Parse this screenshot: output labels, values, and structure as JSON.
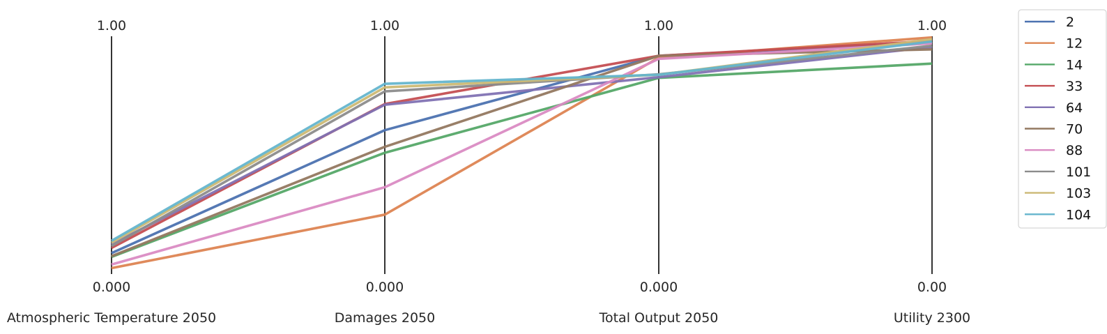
{
  "chart_data": {
    "type": "parallel_coordinates",
    "axes": [
      {
        "name": "Atmospheric Temperature 2050",
        "top_label": "1.00",
        "bottom_label": "0.000"
      },
      {
        "name": "Damages 2050",
        "top_label": "1.00",
        "bottom_label": "0.000"
      },
      {
        "name": "Total Output 2050",
        "top_label": "1.00",
        "bottom_label": "0.000"
      },
      {
        "name": "Utility 2300",
        "top_label": "1.00",
        "bottom_label": "0.00"
      }
    ],
    "ylim": [
      0,
      1
    ],
    "legend_position": "right",
    "series": [
      {
        "name": "2",
        "color": "#4c72b0",
        "values": [
          0.088,
          0.605,
          0.918,
          0.975
        ]
      },
      {
        "name": "12",
        "color": "#dd8452",
        "values": [
          0.025,
          0.25,
          0.91,
          0.995
        ]
      },
      {
        "name": "14",
        "color": "#55a868",
        "values": [
          0.072,
          0.51,
          0.825,
          0.885
        ]
      },
      {
        "name": "33",
        "color": "#c44e52",
        "values": [
          0.11,
          0.715,
          0.918,
          0.98
        ]
      },
      {
        "name": "64",
        "color": "#8172b3",
        "values": [
          0.125,
          0.712,
          0.828,
          0.955
        ]
      },
      {
        "name": "70",
        "color": "#937860",
        "values": [
          0.075,
          0.535,
          0.918,
          0.945
        ]
      },
      {
        "name": "88",
        "color": "#da8bc3",
        "values": [
          0.04,
          0.365,
          0.905,
          0.97
        ]
      },
      {
        "name": "101",
        "color": "#8c8c8c",
        "values": [
          0.118,
          0.768,
          0.84,
          0.96
        ]
      },
      {
        "name": "103",
        "color": "#ccb974",
        "values": [
          0.132,
          0.785,
          0.838,
          0.988
        ]
      },
      {
        "name": "104",
        "color": "#64b5cd",
        "values": [
          0.14,
          0.8,
          0.838,
          0.978
        ]
      }
    ]
  }
}
